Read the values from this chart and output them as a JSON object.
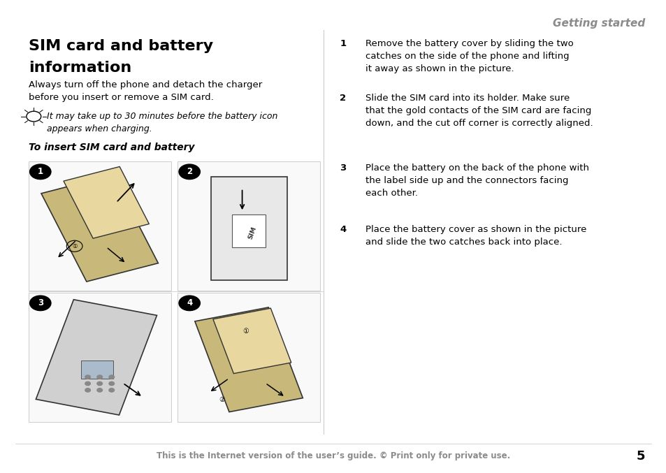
{
  "bg_color": "#ffffff",
  "page_width": 9.54,
  "page_height": 6.77,
  "header_text": "Getting started",
  "header_color": "#8B8B8B",
  "header_fontsize": 11,
  "title_line1": "SIM card and battery",
  "title_line2": "information",
  "title_fontsize": 16,
  "title_color": "#000000",
  "body_text": "Always turn off the phone and detach the charger\nbefore you insert or remove a SIM card.",
  "body_fontsize": 9.5,
  "body_color": "#000000",
  "note_text": "It may take up to 30 minutes before the battery icon\nappears when charging.",
  "note_fontsize": 9,
  "note_color": "#000000",
  "subheading": "To insert SIM card and battery",
  "subheading_fontsize": 10,
  "subheading_color": "#000000",
  "steps": [
    {
      "num": "1",
      "text": "Remove the battery cover by sliding the two\ncatches on the side of the phone and lifting\nit away as shown in the picture."
    },
    {
      "num": "2",
      "text": "Slide the SIM card into its holder. Make sure\nthat the gold contacts of the SIM card are facing\ndown, and the cut off corner is correctly aligned."
    },
    {
      "num": "3",
      "text": "Place the battery on the back of the phone with\nthe label side up and the connectors facing\neach other."
    },
    {
      "num": "4",
      "text": "Place the battery cover as shown in the picture\nand slide the two catches back into place."
    }
  ],
  "step_fontsize": 9.5,
  "step_color": "#000000",
  "step_num_color": "#000000",
  "footer_text": "This is the Internet version of the user’s guide. © Print only for private use.",
  "footer_fontsize": 8.5,
  "footer_color": "#8B8B8B",
  "page_num": "5",
  "page_num_fontsize": 13,
  "page_num_color": "#000000",
  "divider_color": "#cccccc"
}
